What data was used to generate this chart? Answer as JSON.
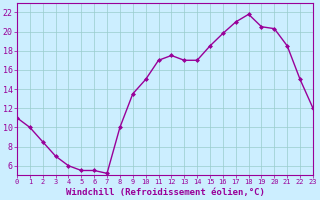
{
  "x": [
    0,
    1,
    2,
    3,
    4,
    5,
    6,
    7,
    8,
    9,
    10,
    11,
    12,
    13,
    14,
    15,
    16,
    17,
    18,
    19,
    20,
    21,
    22,
    23
  ],
  "y": [
    11.0,
    10.0,
    8.5,
    7.0,
    6.0,
    5.5,
    5.5,
    5.2,
    10.0,
    13.5,
    15.0,
    17.0,
    17.5,
    17.0,
    17.0,
    18.5,
    19.8,
    21.0,
    21.8,
    20.5,
    20.3,
    18.5,
    15.0,
    12.0
  ],
  "line_color": "#990099",
  "marker": "D",
  "marker_size": 2.0,
  "line_width": 1.0,
  "bg_color": "#cceeff",
  "grid_color": "#99cccc",
  "xlabel": "Windchill (Refroidissement éolien,°C)",
  "xlabel_fontsize": 6.5,
  "xlim": [
    0,
    23
  ],
  "ylim": [
    5,
    23
  ],
  "yticks": [
    6,
    8,
    10,
    12,
    14,
    16,
    18,
    20,
    22
  ],
  "xticks": [
    0,
    1,
    2,
    3,
    4,
    5,
    6,
    7,
    8,
    9,
    10,
    11,
    12,
    13,
    14,
    15,
    16,
    17,
    18,
    19,
    20,
    21,
    22,
    23
  ],
  "ytick_fontsize": 6.0,
  "xtick_fontsize": 5.0
}
